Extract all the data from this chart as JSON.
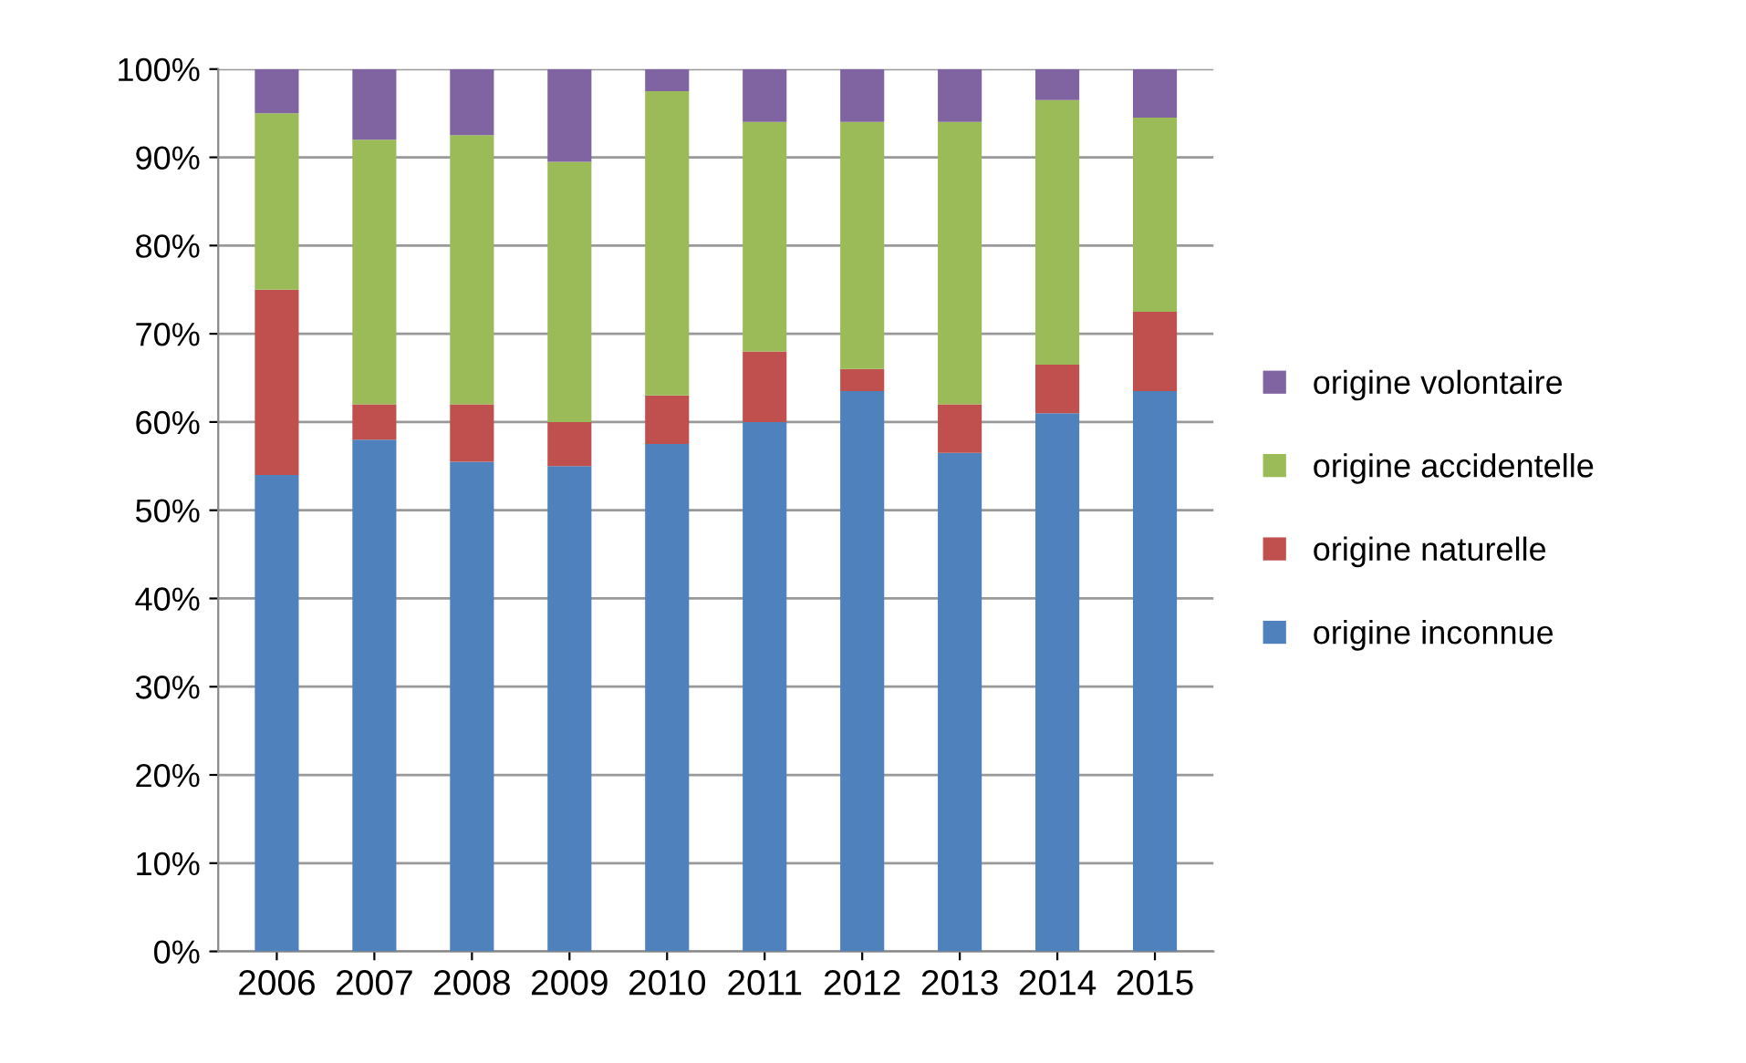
{
  "chart_data": {
    "type": "bar",
    "stacked": true,
    "categories": [
      "2006",
      "2007",
      "2008",
      "2009",
      "2010",
      "2011",
      "2012",
      "2013",
      "2014",
      "2015"
    ],
    "series": [
      {
        "name": "origine inconnue",
        "color": "#4f81bd",
        "values": [
          54,
          58,
          55.5,
          55,
          57.5,
          60,
          63.5,
          56.5,
          61,
          63.5
        ]
      },
      {
        "name": "origine naturelle",
        "color": "#c0504d",
        "values": [
          21,
          4,
          6.5,
          5,
          5.5,
          8,
          2.5,
          5.5,
          5.5,
          9
        ]
      },
      {
        "name": "origine accidentelle",
        "color": "#9bbb59",
        "values": [
          20,
          30,
          30.5,
          29.5,
          34.5,
          26,
          28,
          32,
          30,
          22
        ]
      },
      {
        "name": "origine volontaire",
        "color": "#8064a2",
        "values": [
          5,
          8,
          7.5,
          10.5,
          2.5,
          6,
          6,
          6,
          3.5,
          5.5
        ]
      }
    ],
    "ylim": [
      0,
      100
    ],
    "yticks": [
      {
        "value": 0,
        "label": "0%"
      },
      {
        "value": 10,
        "label": "10%"
      },
      {
        "value": 20,
        "label": "20%"
      },
      {
        "value": 30,
        "label": "30%"
      },
      {
        "value": 40,
        "label": "40%"
      },
      {
        "value": 50,
        "label": "50%"
      },
      {
        "value": 60,
        "label": "60%"
      },
      {
        "value": 70,
        "label": "70%"
      },
      {
        "value": 80,
        "label": "80%"
      },
      {
        "value": 90,
        "label": "90%"
      },
      {
        "value": 100,
        "label": "100%"
      }
    ],
    "grid": "y",
    "legend": "right"
  }
}
